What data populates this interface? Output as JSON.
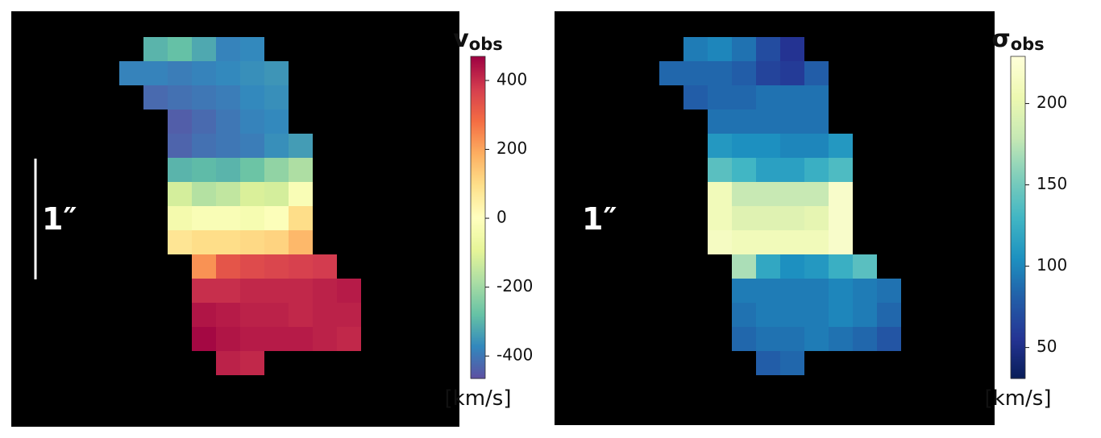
{
  "chart_data": [
    {
      "type": "heatmap",
      "symbol": "v",
      "subscript": "obs",
      "unit": "[km/s]",
      "scale_label": "1″",
      "scale_bar": true,
      "colormap": "Spectral_r",
      "clim": [
        -465,
        470
      ],
      "cticks": [
        -400,
        -200,
        0,
        200,
        400
      ],
      "values": [
        [
          null,
          -300,
          -280,
          -320,
          -380,
          -370,
          null,
          null,
          null,
          null
        ],
        [
          -380,
          -380,
          -390,
          -380,
          -370,
          -360,
          -350,
          null,
          null,
          null
        ],
        [
          null,
          -420,
          -410,
          -400,
          -390,
          -370,
          -360,
          null,
          null,
          null
        ],
        [
          null,
          null,
          -440,
          -420,
          -400,
          -380,
          -370,
          null,
          null,
          null
        ],
        [
          null,
          null,
          -430,
          -410,
          -400,
          -390,
          -360,
          -340,
          null,
          null
        ],
        [
          null,
          null,
          -300,
          -290,
          -300,
          -270,
          -220,
          -180,
          null,
          null
        ],
        [
          null,
          null,
          -120,
          -170,
          -150,
          -110,
          -120,
          -20,
          null,
          null
        ],
        [
          null,
          null,
          -40,
          -20,
          -20,
          -30,
          -10,
          100,
          null,
          null
        ],
        [
          null,
          null,
          80,
          100,
          100,
          110,
          120,
          170,
          null,
          null
        ],
        [
          null,
          null,
          null,
          230,
          330,
          350,
          360,
          370,
          380,
          null
        ],
        [
          null,
          null,
          null,
          400,
          400,
          410,
          410,
          410,
          420,
          430
        ],
        [
          null,
          null,
          null,
          440,
          430,
          420,
          420,
          410,
          420,
          420
        ],
        [
          null,
          null,
          null,
          460,
          440,
          430,
          430,
          430,
          420,
          410
        ],
        [
          null,
          null,
          null,
          null,
          420,
          410,
          null,
          null,
          null,
          null
        ]
      ]
    },
    {
      "type": "heatmap",
      "symbol": "σ",
      "subscript": "obs",
      "unit": "[km/s]",
      "scale_label": "1″",
      "scale_bar": false,
      "colormap": "YlGnBu_r",
      "clim": [
        31,
        229
      ],
      "cticks": [
        50,
        100,
        150,
        200
      ],
      "values": [
        [
          null,
          95,
          100,
          90,
          70,
          55,
          null,
          null,
          null,
          null
        ],
        [
          85,
          85,
          85,
          80,
          65,
          60,
          80,
          null,
          null,
          null
        ],
        [
          null,
          80,
          85,
          85,
          90,
          90,
          90,
          null,
          null,
          null
        ],
        [
          null,
          null,
          90,
          90,
          90,
          90,
          90,
          null,
          null,
          null
        ],
        [
          null,
          null,
          110,
          105,
          105,
          100,
          100,
          110,
          null,
          null
        ],
        [
          null,
          null,
          140,
          130,
          115,
          115,
          125,
          135,
          null,
          null
        ],
        [
          null,
          null,
          210,
          180,
          180,
          180,
          180,
          220,
          null,
          null
        ],
        [
          null,
          null,
          210,
          195,
          195,
          195,
          200,
          220,
          null,
          null
        ],
        [
          null,
          null,
          215,
          210,
          210,
          210,
          210,
          220,
          null,
          null
        ],
        [
          null,
          null,
          null,
          170,
          120,
          105,
          110,
          125,
          140,
          null
        ],
        [
          null,
          null,
          null,
          95,
          95,
          95,
          95,
          100,
          95,
          90
        ],
        [
          null,
          null,
          null,
          90,
          95,
          95,
          95,
          100,
          95,
          85
        ],
        [
          null,
          null,
          null,
          85,
          90,
          90,
          95,
          90,
          85,
          75
        ],
        [
          null,
          null,
          null,
          null,
          80,
          85,
          null,
          null,
          null,
          null
        ]
      ]
    }
  ]
}
